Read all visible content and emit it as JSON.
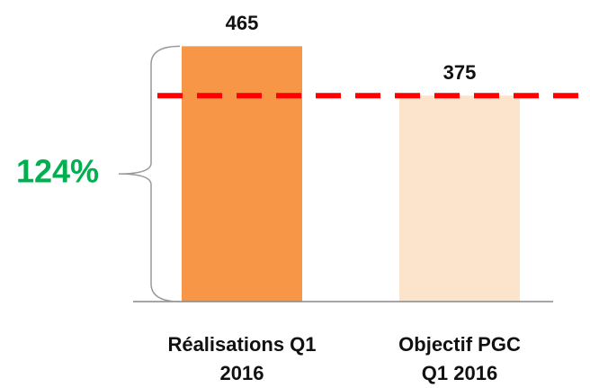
{
  "chart_data": {
    "type": "bar",
    "categories": [
      "Réalisations Q1 2016",
      "Objectif PGC Q1 2016"
    ],
    "values": [
      465,
      375
    ],
    "colors": [
      "#F79646",
      "#FCE4CC"
    ],
    "ylim": [
      0,
      500
    ],
    "reference_line": {
      "color": "#FF0000",
      "style": "dashed"
    },
    "annotation": {
      "text": "124%",
      "color": "#00B050"
    }
  }
}
